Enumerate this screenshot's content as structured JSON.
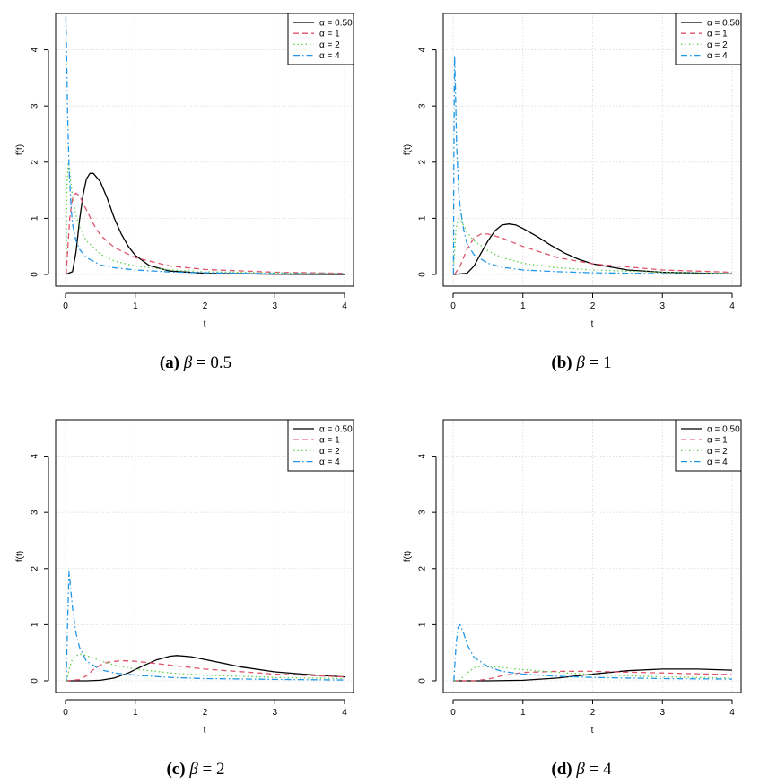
{
  "chart_data": [
    {
      "panel": "a",
      "caption": {
        "label": "(a)",
        "symbol": "β",
        "eq": "= 0.5"
      },
      "type": "line",
      "xlabel": "t",
      "ylabel": "f(t)",
      "xlim": [
        0,
        4
      ],
      "ylim": [
        0,
        4.6
      ],
      "xticks": [
        0,
        1,
        2,
        3,
        4
      ],
      "yticks": [
        0,
        1,
        2,
        3,
        4
      ],
      "grid": true,
      "legend_position": "top-right",
      "series": [
        {
          "name": "α = 0.50",
          "color": "#000000",
          "dash": "solid",
          "points": [
            [
              0,
              0
            ],
            [
              0.1,
              0.05
            ],
            [
              0.15,
              0.4
            ],
            [
              0.2,
              0.95
            ],
            [
              0.25,
              1.4
            ],
            [
              0.3,
              1.7
            ],
            [
              0.35,
              1.8
            ],
            [
              0.4,
              1.8
            ],
            [
              0.5,
              1.65
            ],
            [
              0.6,
              1.35
            ],
            [
              0.7,
              1.0
            ],
            [
              0.8,
              0.72
            ],
            [
              0.9,
              0.5
            ],
            [
              1.0,
              0.34
            ],
            [
              1.2,
              0.16
            ],
            [
              1.5,
              0.06
            ],
            [
              2.0,
              0.02
            ],
            [
              3.0,
              0.005
            ],
            [
              4.0,
              0.0
            ]
          ]
        },
        {
          "name": "α = 1",
          "color": "#df536b",
          "dash": "dashed",
          "points": [
            [
              0.01,
              0
            ],
            [
              0.03,
              0.4
            ],
            [
              0.06,
              1.0
            ],
            [
              0.1,
              1.35
            ],
            [
              0.15,
              1.45
            ],
            [
              0.2,
              1.4
            ],
            [
              0.3,
              1.15
            ],
            [
              0.4,
              0.9
            ],
            [
              0.5,
              0.7
            ],
            [
              0.7,
              0.48
            ],
            [
              1.0,
              0.3
            ],
            [
              1.5,
              0.15
            ],
            [
              2.0,
              0.09
            ],
            [
              3.0,
              0.04
            ],
            [
              4.0,
              0.02
            ]
          ]
        },
        {
          "name": "α = 2",
          "color": "#61d04f",
          "dash": "dotted",
          "points": [
            [
              0.01,
              0.3
            ],
            [
              0.02,
              1.6
            ],
            [
              0.04,
              2.0
            ],
            [
              0.06,
              1.8
            ],
            [
              0.1,
              1.4
            ],
            [
              0.15,
              1.05
            ],
            [
              0.2,
              0.85
            ],
            [
              0.3,
              0.6
            ],
            [
              0.5,
              0.36
            ],
            [
              0.7,
              0.24
            ],
            [
              1.0,
              0.15
            ],
            [
              1.5,
              0.08
            ],
            [
              2.0,
              0.05
            ],
            [
              3.0,
              0.03
            ],
            [
              4.0,
              0.015
            ]
          ]
        },
        {
          "name": "α = 4",
          "color": "#2297e6",
          "dash": "dashdot",
          "points": [
            [
              0.005,
              4.6
            ],
            [
              0.015,
              4.0
            ],
            [
              0.03,
              2.9
            ],
            [
              0.05,
              1.9
            ],
            [
              0.08,
              1.2
            ],
            [
              0.1,
              0.9
            ],
            [
              0.15,
              0.6
            ],
            [
              0.2,
              0.45
            ],
            [
              0.3,
              0.3
            ],
            [
              0.5,
              0.17
            ],
            [
              0.7,
              0.12
            ],
            [
              1.0,
              0.08
            ],
            [
              1.5,
              0.045
            ],
            [
              2.0,
              0.03
            ],
            [
              3.0,
              0.015
            ],
            [
              4.0,
              0.01
            ]
          ]
        }
      ]
    },
    {
      "panel": "b",
      "caption": {
        "label": "(b)",
        "symbol": "β",
        "eq": "= 1"
      },
      "type": "line",
      "xlabel": "t",
      "ylabel": "f(t)",
      "xlim": [
        0,
        4
      ],
      "ylim": [
        0,
        4.6
      ],
      "xticks": [
        0,
        1,
        2,
        3,
        4
      ],
      "yticks": [
        0,
        1,
        2,
        3,
        4
      ],
      "grid": true,
      "legend_position": "top-right",
      "series": [
        {
          "name": "α = 0.50",
          "color": "#000000",
          "dash": "solid",
          "points": [
            [
              0,
              0
            ],
            [
              0.2,
              0.02
            ],
            [
              0.3,
              0.15
            ],
            [
              0.4,
              0.38
            ],
            [
              0.5,
              0.6
            ],
            [
              0.6,
              0.78
            ],
            [
              0.7,
              0.88
            ],
            [
              0.8,
              0.9
            ],
            [
              0.9,
              0.88
            ],
            [
              1.0,
              0.82
            ],
            [
              1.2,
              0.68
            ],
            [
              1.4,
              0.52
            ],
            [
              1.6,
              0.38
            ],
            [
              1.8,
              0.27
            ],
            [
              2.0,
              0.19
            ],
            [
              2.5,
              0.08
            ],
            [
              3.0,
              0.04
            ],
            [
              4.0,
              0.01
            ]
          ]
        },
        {
          "name": "α = 1",
          "color": "#df536b",
          "dash": "dashed",
          "points": [
            [
              0.02,
              0
            ],
            [
              0.1,
              0.15
            ],
            [
              0.2,
              0.45
            ],
            [
              0.3,
              0.65
            ],
            [
              0.4,
              0.72
            ],
            [
              0.5,
              0.72
            ],
            [
              0.7,
              0.65
            ],
            [
              1.0,
              0.5
            ],
            [
              1.5,
              0.3
            ],
            [
              2.0,
              0.19
            ],
            [
              3.0,
              0.08
            ],
            [
              4.0,
              0.04
            ]
          ]
        },
        {
          "name": "α = 2",
          "color": "#61d04f",
          "dash": "dotted",
          "points": [
            [
              0.01,
              0.2
            ],
            [
              0.04,
              0.8
            ],
            [
              0.08,
              1.0
            ],
            [
              0.12,
              0.95
            ],
            [
              0.2,
              0.75
            ],
            [
              0.3,
              0.6
            ],
            [
              0.5,
              0.42
            ],
            [
              0.7,
              0.3
            ],
            [
              1.0,
              0.2
            ],
            [
              1.5,
              0.12
            ],
            [
              2.0,
              0.08
            ],
            [
              3.0,
              0.04
            ],
            [
              4.0,
              0.02
            ]
          ]
        },
        {
          "name": "α = 4",
          "color": "#2297e6",
          "dash": "dashdot",
          "points": [
            [
              0.005,
              0
            ],
            [
              0.01,
              2.0
            ],
            [
              0.02,
              3.9
            ],
            [
              0.03,
              3.5
            ],
            [
              0.05,
              2.3
            ],
            [
              0.08,
              1.5
            ],
            [
              0.1,
              1.2
            ],
            [
              0.15,
              0.8
            ],
            [
              0.2,
              0.55
            ],
            [
              0.3,
              0.35
            ],
            [
              0.5,
              0.2
            ],
            [
              0.7,
              0.13
            ],
            [
              1.0,
              0.08
            ],
            [
              1.5,
              0.05
            ],
            [
              2.0,
              0.03
            ],
            [
              3.0,
              0.015
            ],
            [
              4.0,
              0.01
            ]
          ]
        }
      ]
    },
    {
      "panel": "c",
      "caption": {
        "label": "(c)",
        "symbol": "β",
        "eq": "= 2"
      },
      "type": "line",
      "xlabel": "t",
      "ylabel": "f(t)",
      "xlim": [
        0,
        4
      ],
      "ylim": [
        0,
        4.6
      ],
      "xticks": [
        0,
        1,
        2,
        3,
        4
      ],
      "yticks": [
        0,
        1,
        2,
        3,
        4
      ],
      "grid": true,
      "legend_position": "top-right",
      "series": [
        {
          "name": "α = 0.50",
          "color": "#000000",
          "dash": "solid",
          "points": [
            [
              0,
              0
            ],
            [
              0.3,
              0
            ],
            [
              0.5,
              0.01
            ],
            [
              0.7,
              0.05
            ],
            [
              0.9,
              0.14
            ],
            [
              1.1,
              0.26
            ],
            [
              1.3,
              0.37
            ],
            [
              1.5,
              0.44
            ],
            [
              1.6,
              0.45
            ],
            [
              1.8,
              0.43
            ],
            [
              2.0,
              0.38
            ],
            [
              2.5,
              0.25
            ],
            [
              3.0,
              0.16
            ],
            [
              3.5,
              0.11
            ],
            [
              4.0,
              0.07
            ]
          ]
        },
        {
          "name": "α = 1",
          "color": "#df536b",
          "dash": "dashed",
          "points": [
            [
              0,
              0
            ],
            [
              0.2,
              0.02
            ],
            [
              0.3,
              0.09
            ],
            [
              0.4,
              0.2
            ],
            [
              0.5,
              0.28
            ],
            [
              0.6,
              0.33
            ],
            [
              0.8,
              0.36
            ],
            [
              1.0,
              0.35
            ],
            [
              1.5,
              0.28
            ],
            [
              2.0,
              0.21
            ],
            [
              3.0,
              0.12
            ],
            [
              4.0,
              0.07
            ]
          ]
        },
        {
          "name": "α = 2",
          "color": "#61d04f",
          "dash": "dotted",
          "points": [
            [
              0.02,
              0
            ],
            [
              0.05,
              0.2
            ],
            [
              0.1,
              0.4
            ],
            [
              0.2,
              0.48
            ],
            [
              0.3,
              0.45
            ],
            [
              0.5,
              0.36
            ],
            [
              0.7,
              0.28
            ],
            [
              1.0,
              0.21
            ],
            [
              1.5,
              0.14
            ],
            [
              2.0,
              0.1
            ],
            [
              3.0,
              0.06
            ],
            [
              4.0,
              0.04
            ]
          ]
        },
        {
          "name": "α = 4",
          "color": "#2297e6",
          "dash": "dashdot",
          "points": [
            [
              0.01,
              0
            ],
            [
              0.03,
              1.0
            ],
            [
              0.05,
              1.95
            ],
            [
              0.07,
              1.7
            ],
            [
              0.1,
              1.3
            ],
            [
              0.15,
              0.85
            ],
            [
              0.2,
              0.6
            ],
            [
              0.3,
              0.35
            ],
            [
              0.5,
              0.2
            ],
            [
              0.7,
              0.14
            ],
            [
              1.0,
              0.1
            ],
            [
              1.5,
              0.06
            ],
            [
              2.0,
              0.04
            ],
            [
              3.0,
              0.025
            ],
            [
              4.0,
              0.015
            ]
          ]
        }
      ]
    },
    {
      "panel": "d",
      "caption": {
        "label": "(d)",
        "symbol": "β",
        "eq": "= 4"
      },
      "type": "line",
      "xlabel": "t",
      "ylabel": "f(t)",
      "xlim": [
        0,
        4
      ],
      "ylim": [
        0,
        4.6
      ],
      "xticks": [
        0,
        1,
        2,
        3,
        4
      ],
      "yticks": [
        0,
        1,
        2,
        3,
        4
      ],
      "grid": true,
      "legend_position": "top-right",
      "series": [
        {
          "name": "α = 0.50",
          "color": "#000000",
          "dash": "solid",
          "points": [
            [
              0,
              0
            ],
            [
              0.5,
              0
            ],
            [
              1.0,
              0.01
            ],
            [
              1.5,
              0.05
            ],
            [
              2.0,
              0.12
            ],
            [
              2.5,
              0.18
            ],
            [
              3.0,
              0.21
            ],
            [
              3.5,
              0.21
            ],
            [
              4.0,
              0.19
            ]
          ]
        },
        {
          "name": "α = 1",
          "color": "#df536b",
          "dash": "dashed",
          "points": [
            [
              0,
              0
            ],
            [
              0.3,
              0
            ],
            [
              0.5,
              0.03
            ],
            [
              0.7,
              0.09
            ],
            [
              1.0,
              0.15
            ],
            [
              1.5,
              0.17
            ],
            [
              2.0,
              0.17
            ],
            [
              3.0,
              0.14
            ],
            [
              4.0,
              0.11
            ]
          ]
        },
        {
          "name": "α = 2",
          "color": "#61d04f",
          "dash": "dotted",
          "points": [
            [
              0.02,
              0
            ],
            [
              0.1,
              0.02
            ],
            [
              0.2,
              0.14
            ],
            [
              0.3,
              0.23
            ],
            [
              0.4,
              0.26
            ],
            [
              0.6,
              0.25
            ],
            [
              1.0,
              0.2
            ],
            [
              1.5,
              0.15
            ],
            [
              2.0,
              0.11
            ],
            [
              3.0,
              0.07
            ],
            [
              4.0,
              0.05
            ]
          ]
        },
        {
          "name": "α = 4",
          "color": "#2297e6",
          "dash": "dashdot",
          "points": [
            [
              0.01,
              0
            ],
            [
              0.04,
              0.6
            ],
            [
              0.07,
              0.95
            ],
            [
              0.1,
              1.0
            ],
            [
              0.15,
              0.85
            ],
            [
              0.2,
              0.65
            ],
            [
              0.3,
              0.42
            ],
            [
              0.5,
              0.25
            ],
            [
              0.7,
              0.17
            ],
            [
              1.0,
              0.12
            ],
            [
              1.5,
              0.08
            ],
            [
              2.0,
              0.06
            ],
            [
              3.0,
              0.04
            ],
            [
              4.0,
              0.03
            ]
          ]
        }
      ]
    }
  ]
}
